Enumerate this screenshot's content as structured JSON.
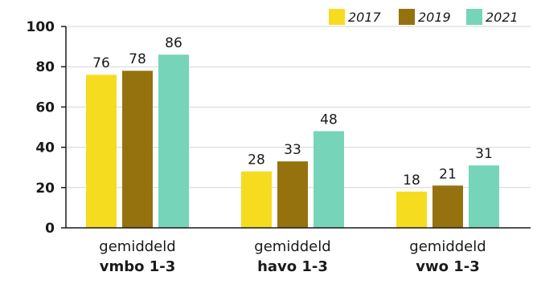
{
  "chart_data": {
    "type": "bar",
    "categories": [
      {
        "line1": "gemiddeld",
        "line2": "vmbo 1-3"
      },
      {
        "line1": "gemiddeld",
        "line2": "havo 1-3"
      },
      {
        "line1": "gemiddeld",
        "line2": "vwo 1-3"
      }
    ],
    "series": [
      {
        "name": "2017",
        "color": "#f5dc1f",
        "values": [
          76,
          28,
          18
        ]
      },
      {
        "name": "2019",
        "color": "#96720f",
        "values": [
          78,
          33,
          21
        ]
      },
      {
        "name": "2021",
        "color": "#76d4b9",
        "values": [
          86,
          48,
          31
        ]
      }
    ],
    "ylim": [
      0,
      100
    ],
    "yticks": [
      "0",
      "20",
      "40",
      "60",
      "80",
      "100"
    ],
    "grid": true,
    "legend_position": "top-right"
  }
}
